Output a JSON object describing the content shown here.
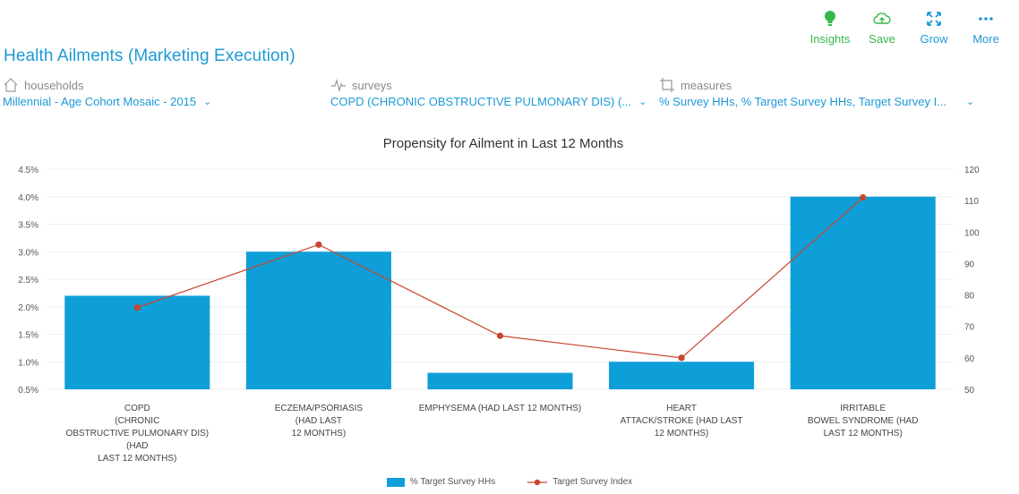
{
  "toolbar": {
    "insights": "Insights",
    "save": "Save",
    "grow": "Grow",
    "more": "More"
  },
  "title": "Health Ailments  (Marketing Execution)",
  "filters": {
    "households": {
      "label": "households",
      "value": "Millennial - Age Cohort Mosaic - 2015"
    },
    "surveys": {
      "label": "surveys",
      "value": "COPD (CHRONIC OBSTRUCTIVE PULMONARY DIS) (..."
    },
    "measures": {
      "label": "measures",
      "value": "% Survey HHs, % Target Survey HHs, Target Survey I..."
    }
  },
  "colors": {
    "accent": "#1c9ad6",
    "green": "#34b84a",
    "bar": "#0e9fd8",
    "line": "#c84630"
  },
  "chart_data": {
    "type": "bar",
    "title": "Propensity for Ailment in Last 12 Months",
    "categories": [
      [
        "COPD",
        "(CHRONIC",
        "OBSTRUCTIVE PULMONARY DIS)",
        "(HAD",
        "LAST 12 MONTHS)"
      ],
      [
        "ECZEMA/PSORIASIS",
        "(HAD LAST",
        "12 MONTHS)"
      ],
      [
        "EMPHYSEMA (HAD LAST 12 MONTHS)"
      ],
      [
        "HEART",
        "ATTACK/STROKE (HAD LAST",
        "12 MONTHS)"
      ],
      [
        "IRRITABLE",
        "BOWEL SYNDROME (HAD",
        "LAST 12 MONTHS)"
      ]
    ],
    "series": [
      {
        "name": "% Target Survey HHs",
        "type": "bar",
        "axis": "left",
        "values": [
          2.2,
          3.0,
          0.8,
          1.0,
          4.0
        ]
      },
      {
        "name": "Target Survey Index",
        "type": "line",
        "axis": "right",
        "values": [
          76,
          96,
          67,
          60,
          111
        ]
      }
    ],
    "left_axis": {
      "ticks": [
        "0.5%",
        "1.0%",
        "1.5%",
        "2.0%",
        "2.5%",
        "3.0%",
        "3.5%",
        "4.0%",
        "4.5%"
      ],
      "range": [
        0.5,
        4.5
      ]
    },
    "right_axis": {
      "ticks": [
        "50",
        "60",
        "70",
        "80",
        "90",
        "100",
        "110",
        "120"
      ],
      "range": [
        50,
        120
      ]
    },
    "legend_position": "bottom-center"
  }
}
